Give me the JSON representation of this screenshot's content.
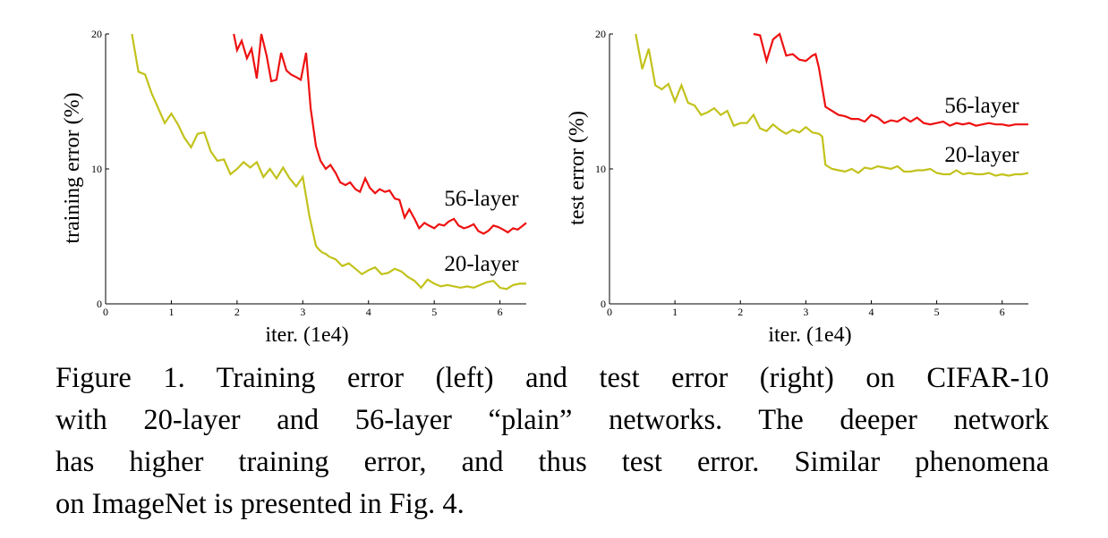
{
  "figure": {
    "caption_lines": [
      "Figure 1. Training error (left) and test error (right) on CIFAR-10",
      "with 20-layer and 56-layer “plain” networks. The deeper network",
      "has higher training error, and thus test error. Similar phenomena",
      "on ImageNet is presented in Fig. 4."
    ]
  },
  "chart_data": [
    {
      "type": "line",
      "title": "",
      "xlabel": "iter. (1e4)",
      "ylabel": "training error (%)",
      "xlim": [
        0,
        6.4
      ],
      "ylim": [
        0,
        20
      ],
      "xticks": [
        0,
        1,
        2,
        3,
        4,
        5,
        6
      ],
      "yticks": [
        0,
        10,
        20
      ],
      "grid": false,
      "series": [
        {
          "name": "56-layer",
          "color": "#ee1111",
          "x": [
            1.95,
            2.0,
            2.07,
            2.15,
            2.22,
            2.3,
            2.37,
            2.45,
            2.52,
            2.6,
            2.67,
            2.75,
            2.82,
            2.9,
            2.97,
            3.05,
            3.12,
            3.2,
            3.27,
            3.35,
            3.42,
            3.5,
            3.57,
            3.65,
            3.72,
            3.8,
            3.87,
            3.95,
            4.02,
            4.1,
            4.17,
            4.25,
            4.32,
            4.4,
            4.47,
            4.55,
            4.62,
            4.7,
            4.77,
            4.85,
            4.92,
            5.0,
            5.07,
            5.15,
            5.22,
            5.3,
            5.37,
            5.45,
            5.52,
            5.6,
            5.67,
            5.75,
            5.82,
            5.9,
            5.97,
            6.05,
            6.12,
            6.2,
            6.27,
            6.35,
            6.4
          ],
          "values": [
            20.0,
            18.8,
            19.5,
            18.2,
            18.9,
            16.7,
            20.0,
            18.4,
            16.5,
            16.6,
            18.6,
            17.3,
            17.0,
            16.8,
            16.6,
            18.6,
            14.5,
            11.7,
            10.6,
            10.0,
            10.3,
            9.7,
            9.0,
            8.8,
            9.0,
            8.5,
            8.3,
            9.3,
            8.6,
            8.2,
            8.5,
            8.3,
            8.4,
            7.8,
            7.7,
            6.4,
            7.0,
            6.3,
            5.6,
            6.0,
            5.8,
            5.6,
            5.9,
            5.8,
            6.1,
            6.3,
            5.8,
            5.6,
            5.7,
            5.9,
            5.4,
            5.2,
            5.4,
            5.8,
            5.7,
            5.5,
            5.3,
            5.6,
            5.5,
            5.8,
            6.0
          ]
        },
        {
          "name": "20-layer",
          "color": "#c2c21c",
          "x": [
            0.4,
            0.5,
            0.6,
            0.7,
            0.8,
            0.9,
            1.0,
            1.1,
            1.2,
            1.3,
            1.4,
            1.5,
            1.6,
            1.7,
            1.8,
            1.9,
            2.0,
            2.1,
            2.2,
            2.3,
            2.4,
            2.5,
            2.6,
            2.7,
            2.8,
            2.9,
            3.0,
            3.1,
            3.2,
            3.25,
            3.3,
            3.35,
            3.4,
            3.5,
            3.6,
            3.7,
            3.8,
            3.9,
            4.0,
            4.1,
            4.2,
            4.3,
            4.4,
            4.5,
            4.6,
            4.7,
            4.8,
            4.9,
            5.0,
            5.1,
            5.2,
            5.3,
            5.4,
            5.5,
            5.6,
            5.7,
            5.8,
            5.9,
            6.0,
            6.1,
            6.2,
            6.3,
            6.4
          ],
          "values": [
            20.0,
            17.2,
            17.0,
            15.6,
            14.5,
            13.4,
            14.1,
            13.3,
            12.3,
            11.6,
            12.6,
            12.7,
            11.3,
            10.6,
            10.7,
            9.6,
            10.0,
            10.5,
            10.1,
            10.5,
            9.4,
            10.0,
            9.3,
            10.1,
            9.3,
            8.7,
            9.4,
            6.5,
            4.3,
            4.0,
            3.8,
            3.7,
            3.5,
            3.3,
            2.8,
            3.0,
            2.6,
            2.2,
            2.5,
            2.7,
            2.2,
            2.3,
            2.6,
            2.4,
            2.0,
            1.7,
            1.2,
            1.8,
            1.5,
            1.3,
            1.4,
            1.3,
            1.2,
            1.3,
            1.2,
            1.4,
            1.6,
            1.7,
            1.2,
            1.1,
            1.4,
            1.5,
            1.5
          ]
        }
      ]
    },
    {
      "type": "line",
      "title": "",
      "xlabel": "iter. (1e4)",
      "ylabel": "test error (%)",
      "xlim": [
        0,
        6.4
      ],
      "ylim": [
        0,
        20
      ],
      "xticks": [
        0,
        1,
        2,
        3,
        4,
        5,
        6
      ],
      "yticks": [
        0,
        10,
        20
      ],
      "grid": false,
      "series": [
        {
          "name": "56-layer",
          "color": "#ee1111",
          "x": [
            2.2,
            2.3,
            2.4,
            2.5,
            2.6,
            2.7,
            2.8,
            2.9,
            3.0,
            3.1,
            3.15,
            3.2,
            3.3,
            3.4,
            3.5,
            3.6,
            3.7,
            3.8,
            3.9,
            4.0,
            4.1,
            4.2,
            4.3,
            4.4,
            4.5,
            4.6,
            4.7,
            4.8,
            4.9,
            5.0,
            5.1,
            5.2,
            5.3,
            5.4,
            5.5,
            5.6,
            5.7,
            5.8,
            5.9,
            6.0,
            6.1,
            6.2,
            6.3,
            6.4
          ],
          "values": [
            20.0,
            19.9,
            18.0,
            19.6,
            20.0,
            18.4,
            18.5,
            18.1,
            18.0,
            18.4,
            18.5,
            17.5,
            14.6,
            14.3,
            14.0,
            13.9,
            13.7,
            13.7,
            13.5,
            14.0,
            13.8,
            13.4,
            13.6,
            13.5,
            13.8,
            13.5,
            13.8,
            13.4,
            13.3,
            13.4,
            13.5,
            13.2,
            13.4,
            13.3,
            13.4,
            13.2,
            13.3,
            13.4,
            13.3,
            13.3,
            13.2,
            13.3,
            13.3,
            13.3
          ]
        },
        {
          "name": "20-layer",
          "color": "#c2c21c",
          "x": [
            0.4,
            0.5,
            0.6,
            0.7,
            0.8,
            0.9,
            1.0,
            1.1,
            1.2,
            1.3,
            1.4,
            1.5,
            1.6,
            1.7,
            1.8,
            1.9,
            2.0,
            2.1,
            2.2,
            2.3,
            2.4,
            2.5,
            2.6,
            2.7,
            2.8,
            2.9,
            3.0,
            3.1,
            3.2,
            3.25,
            3.3,
            3.4,
            3.5,
            3.6,
            3.7,
            3.8,
            3.9,
            4.0,
            4.1,
            4.2,
            4.3,
            4.4,
            4.5,
            4.6,
            4.7,
            4.8,
            4.9,
            5.0,
            5.1,
            5.2,
            5.3,
            5.4,
            5.5,
            5.6,
            5.7,
            5.8,
            5.9,
            6.0,
            6.1,
            6.2,
            6.3,
            6.4
          ],
          "values": [
            20.0,
            17.4,
            18.9,
            16.2,
            15.9,
            16.3,
            15.0,
            16.2,
            14.9,
            14.7,
            14.0,
            14.2,
            14.5,
            14.0,
            14.3,
            13.2,
            13.4,
            13.4,
            14.0,
            13.0,
            12.8,
            13.3,
            12.9,
            12.6,
            12.9,
            12.7,
            13.1,
            12.7,
            12.6,
            12.4,
            10.3,
            10.0,
            9.9,
            9.8,
            10.0,
            9.7,
            10.1,
            10.0,
            10.2,
            10.1,
            10.0,
            10.2,
            9.8,
            9.8,
            9.9,
            9.9,
            10.0,
            9.7,
            9.6,
            9.6,
            9.9,
            9.6,
            9.7,
            9.6,
            9.6,
            9.7,
            9.5,
            9.6,
            9.5,
            9.6,
            9.6,
            9.7
          ]
        }
      ]
    }
  ]
}
